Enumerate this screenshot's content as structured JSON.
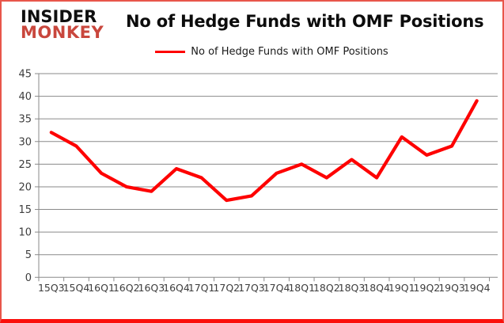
{
  "header": {
    "logo_line1": "INSIDER",
    "logo_line2": "MONKEY",
    "title": "No of Hedge Funds with OMF Positions"
  },
  "legend": {
    "label": "No of Hedge Funds with OMF Positions",
    "color": "#fe0000"
  },
  "chart_data": {
    "type": "line",
    "title": "No of Hedge Funds with OMF Positions",
    "categories": [
      "15Q3",
      "15Q4",
      "16Q1",
      "16Q2",
      "16Q3",
      "16Q4",
      "17Q1",
      "17Q2",
      "17Q3",
      "17Q4",
      "18Q1",
      "18Q2",
      "18Q3",
      "18Q4",
      "19Q1",
      "19Q2",
      "19Q3",
      "19Q4"
    ],
    "series": [
      {
        "name": "No of Hedge Funds with OMF Positions",
        "color": "#fe0000",
        "values": [
          32,
          29,
          23,
          20,
          19,
          24,
          22,
          17,
          18,
          23,
          25,
          22,
          26,
          22,
          31,
          27,
          29,
          39
        ]
      }
    ],
    "ylim": [
      0,
      45
    ],
    "ytick_step": 5,
    "grid": true,
    "legend_position": "top-center",
    "xlabel": "",
    "ylabel": ""
  },
  "style": {
    "gridline_color": "#8a8a8a",
    "axis_color": "#8a8a8a",
    "axis_text_color": "#3d3d3d",
    "border_color": "#e8564b",
    "bottom_bar_color": "#fb100c",
    "logo_black": "#0f0f0f",
    "logo_red": "#c9473d"
  }
}
